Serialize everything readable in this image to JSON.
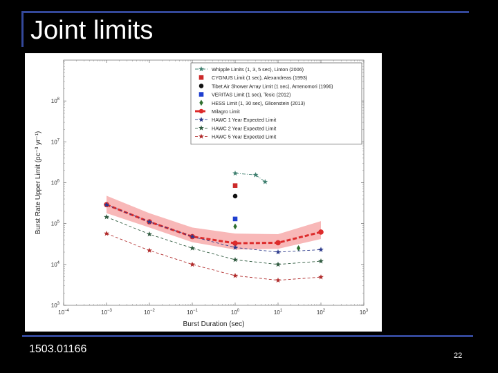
{
  "slide": {
    "title": "Joint limits",
    "figure_ref": "1503.01166",
    "page_number": "22"
  },
  "colors": {
    "background": "#000000",
    "rule": "#34489a",
    "text": "#ffffff"
  },
  "chart_data": {
    "type": "scatter",
    "xscale": "log",
    "yscale": "log",
    "xlim": [
      0.0001,
      1000
    ],
    "ylim": [
      1000,
      1000000000
    ],
    "xlabel": "Burst Duration (sec)",
    "ylabel": "Burst Rate Upper Limit (pc⁻³ yr⁻¹)",
    "x_ticks": [
      0.0001,
      0.001,
      0.01,
      0.1,
      1,
      10,
      100,
      1000
    ],
    "x_tick_labels": [
      {
        "base": "10",
        "exp": "−4"
      },
      {
        "base": "10",
        "exp": "−3"
      },
      {
        "base": "10",
        "exp": "−2"
      },
      {
        "base": "10",
        "exp": "−1"
      },
      {
        "base": "10",
        "exp": "0"
      },
      {
        "base": "10",
        "exp": "1"
      },
      {
        "base": "10",
        "exp": "2"
      },
      {
        "base": "10",
        "exp": "3"
      }
    ],
    "y_ticks": [
      1000,
      10000,
      100000,
      1000000,
      10000000,
      100000000
    ],
    "y_tick_labels": [
      {
        "base": "10",
        "exp": "3"
      },
      {
        "base": "10",
        "exp": "4"
      },
      {
        "base": "10",
        "exp": "5"
      },
      {
        "base": "10",
        "exp": "6"
      },
      {
        "base": "10",
        "exp": "7"
      },
      {
        "base": "10",
        "exp": "8"
      }
    ],
    "legend_position": "top-right",
    "band": {
      "color": "#f5a0a0",
      "x": [
        0.001,
        0.01,
        0.1,
        1,
        10,
        100
      ],
      "lower": [
        180000,
        80000,
        35000,
        23000,
        24000,
        42000
      ],
      "upper": [
        480000,
        180000,
        80000,
        57000,
        55000,
        115000
      ]
    },
    "series": [
      {
        "name": "Whipple Limits (1, 3, 5 sec), Linton (2006)",
        "color": "#3f7f6f",
        "marker": "star",
        "line": "dashdot",
        "x": [
          1,
          3,
          5
        ],
        "y": [
          1700000,
          1550000,
          1050000
        ]
      },
      {
        "name": "CYGNUS Limit (1 sec), Alexandreas (1993)",
        "color": "#cc2a2a",
        "marker": "square",
        "line": "none",
        "x": [
          1
        ],
        "y": [
          850000
        ]
      },
      {
        "name": "Tibet Air Shower Array Limit (1 sec), Amenomori (1996)",
        "color": "#111111",
        "marker": "circle",
        "line": "none",
        "x": [
          1
        ],
        "y": [
          470000
        ]
      },
      {
        "name": "VERITAS Limit (1 sec), Tesic (2012)",
        "color": "#1f3fd0",
        "marker": "square",
        "line": "none",
        "x": [
          1
        ],
        "y": [
          130000
        ]
      },
      {
        "name": "HESS Limit (1, 30 sec), Glicenstein (2013)",
        "color": "#2f6f2f",
        "marker": "diamond",
        "line": "none",
        "x": [
          1,
          30
        ],
        "y": [
          85000,
          25000
        ]
      },
      {
        "name": "Milagro Limit",
        "color": "#dd2b2b",
        "marker": "circle",
        "line": "thickdash",
        "x": [
          0.001,
          0.01,
          0.1,
          1,
          10,
          100
        ],
        "y": [
          290000,
          110000,
          48000,
          33000,
          34000,
          62000
        ]
      },
      {
        "name": "HAWC 1 Year Expected Limit",
        "color": "#2c3a8c",
        "marker": "star",
        "line": "dash",
        "x": [
          0.001,
          0.01,
          0.1,
          1,
          10,
          100
        ],
        "y": [
          290000,
          110000,
          48000,
          26000,
          20000,
          23000
        ]
      },
      {
        "name": "HAWC 2 Year Expected Limit",
        "color": "#2f5a3f",
        "marker": "star",
        "line": "dash",
        "x": [
          0.001,
          0.01,
          0.1,
          1,
          10,
          100
        ],
        "y": [
          145000,
          55000,
          25000,
          13000,
          10000,
          12000
        ]
      },
      {
        "name": "HAWC 5 Year Expected Limit",
        "color": "#b02a2a",
        "marker": "star",
        "line": "dash",
        "x": [
          0.001,
          0.01,
          0.1,
          1,
          10,
          100
        ],
        "y": [
          57000,
          22000,
          10000,
          5300,
          4100,
          4900
        ]
      }
    ]
  }
}
